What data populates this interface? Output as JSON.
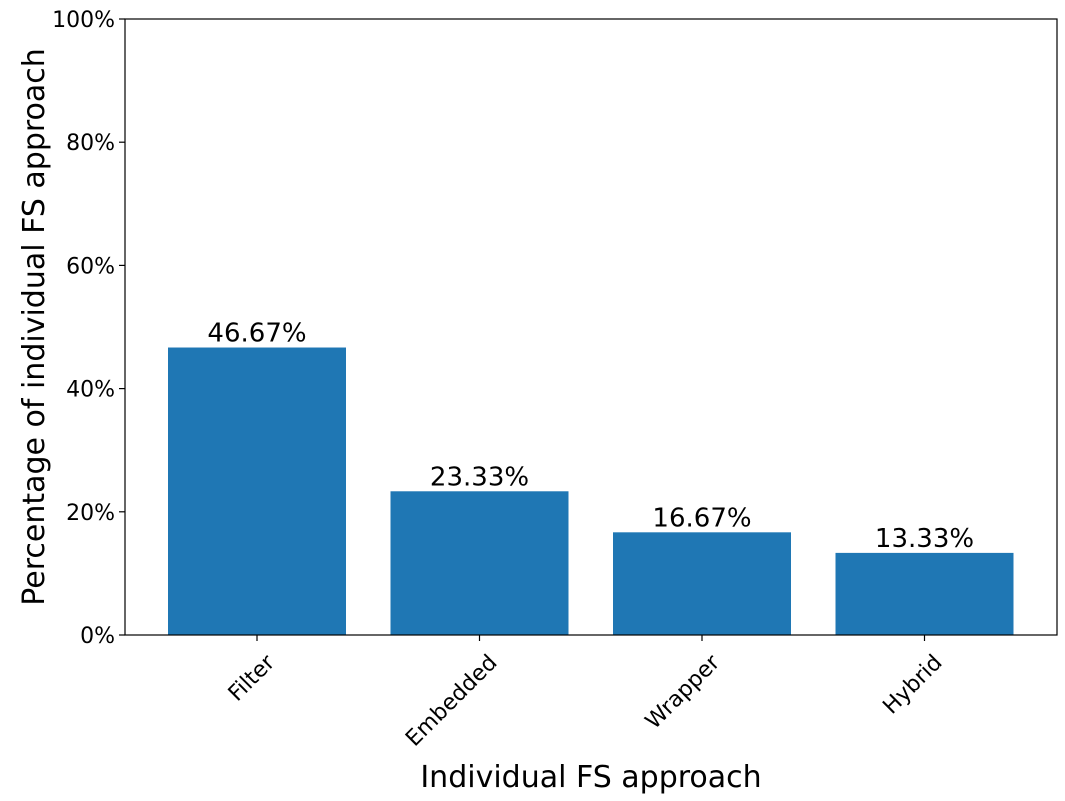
{
  "chart_data": {
    "type": "bar",
    "categories": [
      "Filter",
      "Embedded",
      "Wrapper",
      "Hybrid"
    ],
    "values": [
      46.67,
      23.33,
      16.67,
      13.33
    ],
    "value_labels": [
      "46.67%",
      "23.33%",
      "16.67%",
      "13.33%"
    ],
    "xlabel": "Individual FS approach",
    "ylabel": "Percentage of individual FS approach",
    "ylim": [
      0,
      100
    ],
    "yticks": [
      0,
      20,
      40,
      60,
      80,
      100
    ],
    "ytick_labels": [
      "0%",
      "20%",
      "40%",
      "60%",
      "80%",
      "100%"
    ],
    "bar_color": "#1f77b4",
    "grid": false
  }
}
